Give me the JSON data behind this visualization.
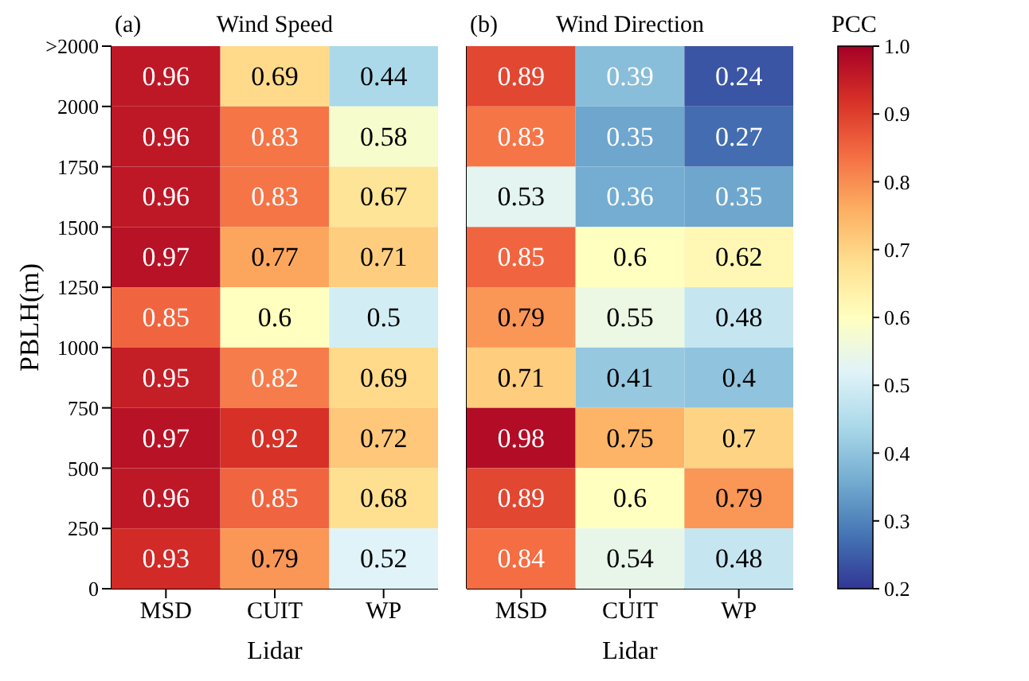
{
  "chart_data": [
    {
      "type": "heatmap",
      "title": "Wind Speed",
      "annotations": [
        "(a)"
      ],
      "xlabel": "Lidar",
      "ylabel": "PBLH(m)",
      "categories": [
        "MSD",
        "CUIT",
        "WP"
      ],
      "ylim": [
        0,
        2250
      ],
      "yticks": [
        0,
        250,
        500,
        750,
        1000,
        1250,
        1500,
        1750,
        2000,
        {
          "value": 2250,
          "label": ">2000"
        }
      ],
      "data_labels": true,
      "cells": [
        [
          0.96,
          0.69,
          0.44
        ],
        [
          0.96,
          0.83,
          0.58
        ],
        [
          0.96,
          0.83,
          0.67
        ],
        [
          0.97,
          0.77,
          0.71
        ],
        [
          0.85,
          0.6,
          0.5
        ],
        [
          0.95,
          0.82,
          0.69
        ],
        [
          0.97,
          0.92,
          0.72
        ],
        [
          0.96,
          0.85,
          0.68
        ],
        [
          0.93,
          0.79,
          0.52
        ]
      ]
    },
    {
      "type": "heatmap",
      "title": "Wind Direction",
      "annotations": [
        "(b)"
      ],
      "xlabel": "Lidar",
      "categories": [
        "MSD",
        "CUIT",
        "WP"
      ],
      "ylim": [
        0,
        2250
      ],
      "tick_labels": "x",
      "data_labels": true,
      "clabel": "PCC",
      "clim": [
        0.2,
        1.0
      ],
      "cticks": [
        0.2,
        0.3,
        0.4,
        0.5,
        0.6,
        0.7,
        0.8,
        0.9,
        {
          "value": 1,
          "label": "1.0"
        }
      ],
      "cells": [
        [
          0.89,
          0.39,
          0.24
        ],
        [
          0.83,
          0.35,
          0.27
        ],
        [
          0.53,
          0.36,
          0.35
        ],
        [
          0.85,
          0.6,
          0.62
        ],
        [
          0.79,
          0.55,
          0.48
        ],
        [
          0.71,
          0.41,
          0.4
        ],
        [
          0.98,
          0.75,
          0.7
        ],
        [
          0.89,
          0.6,
          0.79
        ],
        [
          0.84,
          0.54,
          0.48
        ]
      ]
    }
  ]
}
